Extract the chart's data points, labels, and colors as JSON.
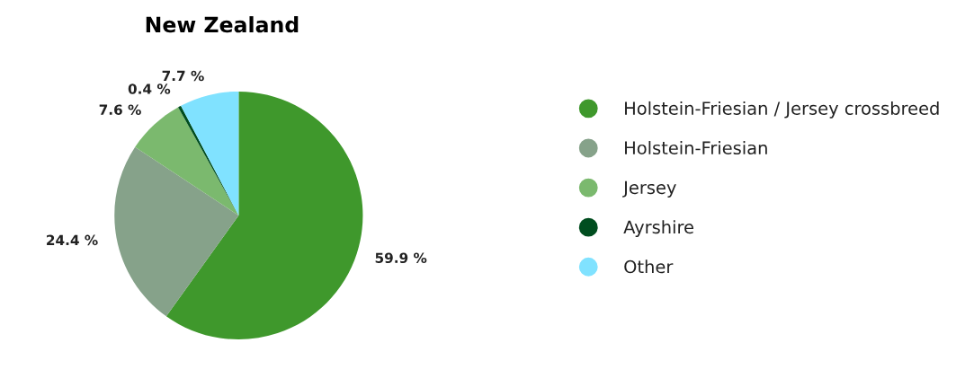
{
  "chart_data": {
    "type": "pie",
    "title": "New Zealand",
    "categories": [
      "Holstein-Friesian / Jersey crossbreed",
      "Holstein-Friesian",
      "Jersey",
      "Ayrshire",
      "Other"
    ],
    "values": [
      59.9,
      24.4,
      7.6,
      0.4,
      7.7
    ],
    "value_labels": [
      "59.9 %",
      "24.4 %",
      "7.6 %",
      "0.4 %",
      "7.7 %"
    ],
    "colors": [
      "#3f982c",
      "#86a28a",
      "#7bb96e",
      "#004d1f",
      "#80e2ff"
    ],
    "legend": "right"
  }
}
